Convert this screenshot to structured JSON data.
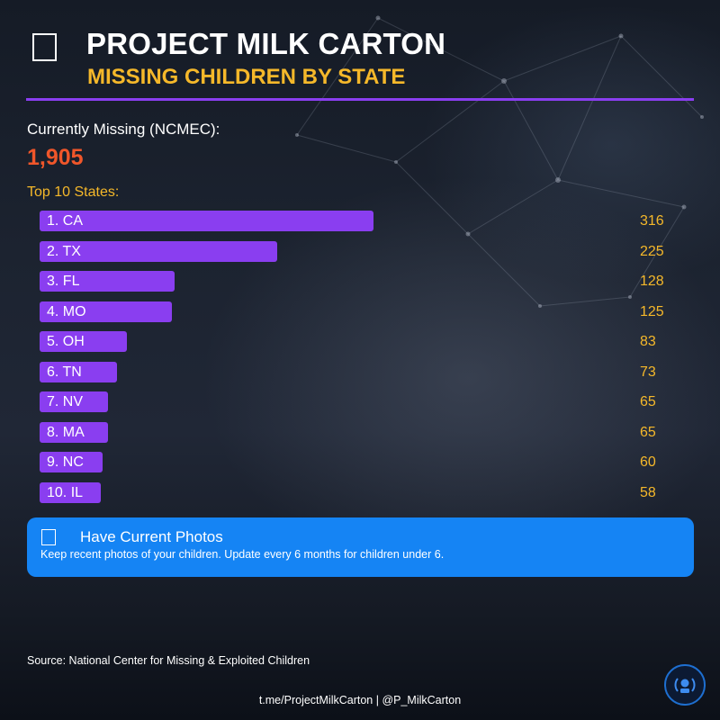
{
  "header": {
    "title": "PROJECT MILK CARTON",
    "subtitle": "MISSING CHILDREN BY STATE",
    "icon": "box-icon"
  },
  "summary": {
    "label": "Currently Missing (NCMEC):",
    "value": "1,905"
  },
  "chart_data": {
    "type": "bar",
    "orientation": "horizontal",
    "title": "Top 10 States:",
    "categories": [
      "1. CA",
      "2. TX",
      "3. FL",
      "4. MO",
      "5. OH",
      "6. TN",
      "7. NV",
      "8. MA",
      "9. NC",
      "10. IL"
    ],
    "values": [
      316,
      225,
      128,
      125,
      83,
      73,
      65,
      65,
      60,
      58
    ],
    "value_labels": [
      "316",
      "225",
      "128",
      "125",
      "83",
      "73",
      "65",
      "65",
      "60",
      "58"
    ],
    "bar_color": "#8a3ef0",
    "value_color": "#f5b82a",
    "grid": false,
    "legend": "none"
  },
  "tip": {
    "icon": "photo-icon",
    "title": "Have Current Photos",
    "body": "Keep recent photos of your children. Update every 6 months for children under 6.",
    "color": "#1584f4"
  },
  "source": "Source: National Center for Missing & Exploited Children",
  "footer": "t.me/ProjectMilkCarton | @P_MilkCarton",
  "logo": "broadcast-logo-icon",
  "colors": {
    "accent": "#8a3ef0",
    "highlight": "#f5b82a",
    "alert": "#f0562a"
  }
}
